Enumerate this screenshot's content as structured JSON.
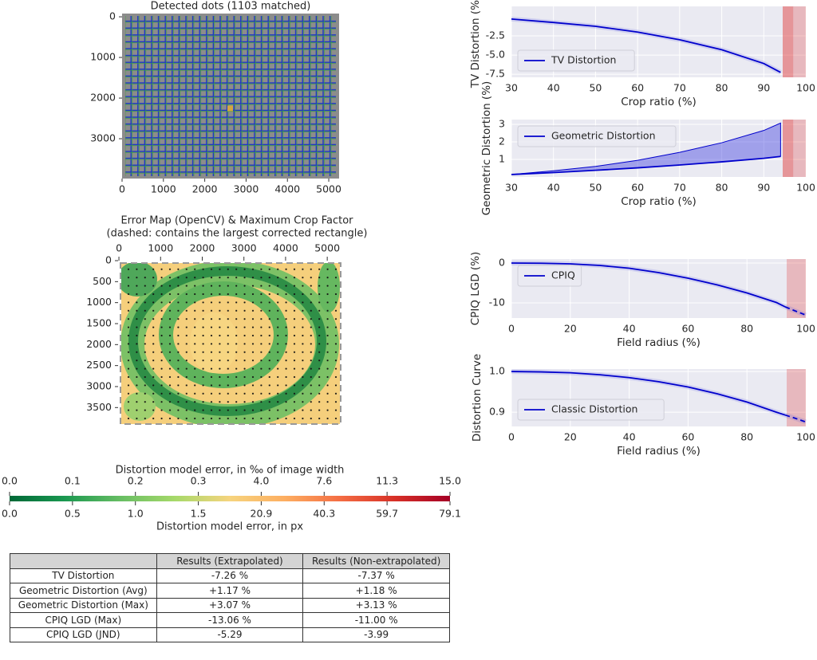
{
  "chart_data": [
    {
      "type": "image",
      "title": "Detected dots (1103 matched)",
      "xlim": [
        0,
        5250
      ],
      "ylim": [
        3980,
        -80
      ],
      "xticks": [
        0,
        1000,
        2000,
        3000,
        4000,
        5000
      ],
      "yticks": [
        0,
        1000,
        2000,
        3000
      ]
    },
    {
      "type": "heatmap",
      "title": "Error Map (OpenCV) & Maximum Crop Factor",
      "subtitle": "(dashed: contains the largest corrected rectangle)",
      "xaxis_position": "top",
      "xlim": [
        -20,
        5380
      ],
      "ylim": [
        3950,
        0
      ],
      "xticks": [
        0,
        1000,
        2000,
        3000,
        4000,
        5000
      ],
      "yticks": [
        0,
        500,
        1000,
        1500,
        2000,
        2500,
        3000,
        3500
      ]
    },
    {
      "type": "colorbar",
      "title": "Distortion model error, in ‰ of image width",
      "xlabel": "Distortion model error, in px",
      "colors": [
        "#006837",
        "#1a9850",
        "#66bd63",
        "#a6d96a",
        "#f6d47e",
        "#fdae61",
        "#f46d43",
        "#d73027",
        "#a50026"
      ],
      "xticks": [
        {
          "value": 0,
          "label": "0.0"
        },
        0.1,
        0.2,
        0.3,
        {
          "value": 4,
          "label": "4.0"
        },
        7.6,
        11.3,
        {
          "value": 15,
          "label": "15.0"
        }
      ],
      "x2ticks": [
        {
          "value": 0,
          "label": "0.0"
        },
        0.5,
        {
          "value": 1,
          "label": "1.0"
        },
        1.5,
        20.9,
        40.3,
        59.7,
        79.1
      ]
    },
    {
      "type": "line",
      "xlabel": "Crop ratio (%)",
      "ylabel": "TV Distortion (%)",
      "grid": true,
      "legend": "lower left",
      "xlim": [
        30,
        100
      ],
      "ylim": [
        -7.9,
        1.35
      ],
      "xticks": [
        30,
        40,
        50,
        60,
        70,
        80,
        90,
        100
      ],
      "yticks": [
        -2.5,
        {
          "value": -5,
          "label": "-5.0"
        },
        -7.5
      ],
      "spans": [
        [
          94.5,
          100
        ],
        [
          94.5,
          97
        ]
      ],
      "series": [
        {
          "name": "TV Distortion",
          "color": "#0000cc",
          "x": [
            30,
            40,
            50,
            60,
            70,
            80,
            90,
            94
          ],
          "values": [
            -0.3,
            -0.75,
            -1.25,
            -2.0,
            -3.0,
            -4.3,
            -6.1,
            -7.26
          ]
        }
      ]
    },
    {
      "type": "line",
      "xlabel": "Crop ratio (%)",
      "ylabel": "Geometric Distortion (%)",
      "grid": true,
      "legend": "upper left",
      "xlim": [
        30,
        100
      ],
      "ylim": [
        0,
        3.27
      ],
      "xticks": [
        30,
        40,
        50,
        60,
        70,
        80,
        90,
        100
      ],
      "yticks": [
        1,
        2,
        3
      ],
      "spans": [
        [
          94.5,
          100
        ],
        [
          94.5,
          97
        ]
      ],
      "series": [
        {
          "name": "Geometric Distortion",
          "color": "#0000cc",
          "x": [
            30,
            40,
            50,
            60,
            70,
            80,
            90,
            94
          ],
          "values": [
            0.14,
            0.25,
            0.38,
            0.52,
            0.68,
            0.86,
            1.06,
            1.17
          ],
          "upper": [
            0.14,
            0.35,
            0.6,
            0.95,
            1.4,
            1.95,
            2.65,
            3.07
          ]
        }
      ]
    },
    {
      "type": "line",
      "xlabel": "Field radius (%)",
      "ylabel": "CPIQ LGD (%)",
      "grid": true,
      "legend": "upper left",
      "xlim": [
        0,
        100
      ],
      "ylim": [
        -13.8,
        1
      ],
      "xticks": [
        0,
        20,
        40,
        60,
        80,
        100
      ],
      "yticks": [
        -10,
        0
      ],
      "spans": [
        [
          93.5,
          100
        ]
      ],
      "series": [
        {
          "name": "CPIQ",
          "color": "#0000cc",
          "x": [
            0,
            10,
            20,
            30,
            40,
            50,
            60,
            70,
            80,
            90,
            93
          ],
          "values": [
            0,
            -0.05,
            -0.2,
            -0.6,
            -1.3,
            -2.4,
            -3.8,
            -5.5,
            -7.5,
            -9.9,
            -11.0
          ]
        },
        {
          "color": "#0000cc",
          "dashed": true,
          "x": [
            93,
            96,
            100
          ],
          "values": [
            -11.0,
            -11.9,
            -13.06
          ]
        }
      ]
    },
    {
      "type": "line",
      "xlabel": "Field radius (%)",
      "ylabel": "Distortion Curve",
      "grid": true,
      "legend": "lower left",
      "xlim": [
        0,
        100
      ],
      "ylim": [
        0.865,
        1.006
      ],
      "xticks": [
        0,
        20,
        40,
        60,
        80,
        100
      ],
      "yticks": [
        0.9,
        {
          "value": 1,
          "label": "1.0"
        }
      ],
      "spans": [
        [
          93.5,
          100
        ]
      ],
      "series": [
        {
          "name": "Classic Distortion",
          "color": "#0000cc",
          "x": [
            0,
            10,
            20,
            30,
            40,
            50,
            60,
            70,
            80,
            90,
            93
          ],
          "values": [
            1.0,
            0.999,
            0.997,
            0.992,
            0.985,
            0.975,
            0.962,
            0.945,
            0.925,
            0.9,
            0.893
          ]
        },
        {
          "color": "#0000cc",
          "dashed": true,
          "x": [
            93,
            96,
            100
          ],
          "values": [
            0.893,
            0.886,
            0.876
          ]
        }
      ]
    }
  ],
  "table": {
    "header": [
      "Results (Extrapolated)",
      "Results (Non-extrapolated)"
    ],
    "rows": [
      [
        "TV Distortion",
        "-7.26 %",
        "-7.37 %"
      ],
      [
        "Geometric Distortion (Avg)",
        "+1.17 %",
        "+1.18 %"
      ],
      [
        "Geometric Distortion (Max)",
        "+3.07 %",
        "+3.13 %"
      ],
      [
        "CPIQ LGD (Max)",
        "-13.06 %",
        "-11.00 %"
      ],
      [
        "CPIQ LGD (JND)",
        "-5.29",
        "-3.99"
      ]
    ]
  }
}
